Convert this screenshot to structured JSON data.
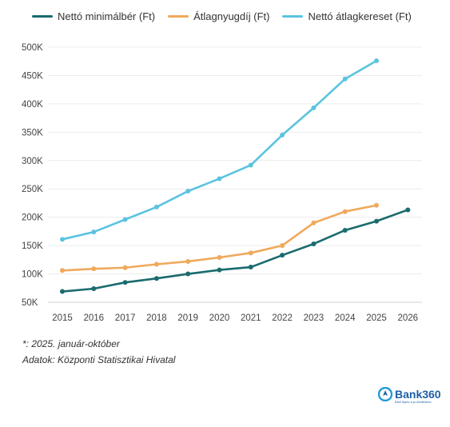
{
  "chart_data": {
    "type": "line",
    "x": [
      "2015",
      "2016",
      "2017",
      "2018",
      "2019",
      "2020",
      "2021",
      "2022",
      "2023",
      "2024",
      "2025",
      "2026"
    ],
    "series": [
      {
        "name": "Nettó minimálbér (Ft)",
        "color": "#1a6b6e",
        "values": [
          69,
          74,
          85,
          92,
          100,
          107,
          112,
          133,
          153,
          177,
          193,
          213
        ]
      },
      {
        "name": "Átlagnyugdíj (Ft)",
        "color": "#f0a95b",
        "values": [
          106,
          109,
          111,
          117,
          122,
          129,
          137,
          150,
          190,
          210,
          221,
          null
        ]
      },
      {
        "name": "Nettó átlagkereset (Ft)",
        "color": "#5bc3e0",
        "values": [
          161,
          174,
          196,
          218,
          246,
          268,
          292,
          345,
          393,
          444,
          476,
          null
        ]
      }
    ],
    "yticks": [
      "50K",
      "100K",
      "150K",
      "200K",
      "250K",
      "300K",
      "350K",
      "400K",
      "450K",
      "500K"
    ],
    "ylim": [
      50,
      500
    ],
    "grid": true,
    "legend_position": "top-left",
    "title": "",
    "xlabel": "",
    "ylabel": ""
  },
  "notes": {
    "footnote": "*: 2025. január-október",
    "source": "Adatok: Központi Statisztikai Hivatal"
  },
  "logo": {
    "text": "Bank360",
    "tagline": "Első lépés a jó döntéshez"
  }
}
